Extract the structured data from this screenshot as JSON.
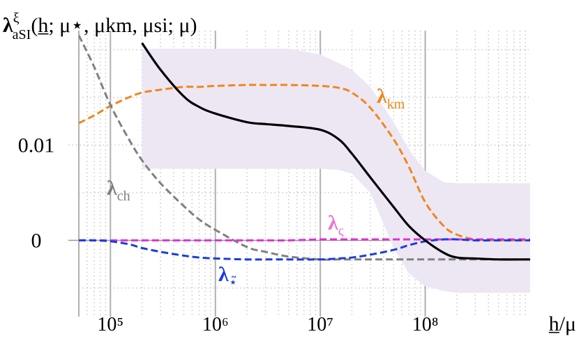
{
  "chart_data": {
    "type": "line",
    "y_label": {
      "base": "λ",
      "sup": "ξ",
      "sub": "aSI",
      "args": "(h̲; μ⋆, μkm, μsi; μ)"
    },
    "x_label": "h̲/μ",
    "log_x": true,
    "grid": true,
    "xlim": [
      50000,
      1000000000
    ],
    "ylim": [
      -0.008,
      0.022
    ],
    "xticks": [
      {
        "value": 100000,
        "label": "10⁵"
      },
      {
        "value": 1000000,
        "label": "10⁶"
      },
      {
        "value": 10000000,
        "label": "10⁷"
      },
      {
        "value": 100000000,
        "label": "10⁸"
      }
    ],
    "yticks": [
      0,
      0.01
    ],
    "y_minor_ticks": [
      -0.005,
      0.005,
      0.015,
      0.02
    ],
    "x": [
      50000,
      70000,
      100000,
      150000,
      200000,
      300000,
      500000,
      700000,
      1000000,
      2000000,
      3000000,
      5000000,
      10000000,
      15000000,
      20000000,
      30000000,
      50000000,
      70000000,
      100000000,
      150000000,
      200000000,
      300000000,
      500000000,
      1000000000
    ],
    "band": {
      "color": "#ede7f3",
      "upper": [
        null,
        null,
        null,
        null,
        0.0201,
        0.0201,
        0.0201,
        0.0201,
        0.0201,
        0.0201,
        0.0201,
        0.0201,
        0.0195,
        0.0186,
        0.0179,
        0.0161,
        0.0124,
        0.0095,
        0.0073,
        0.0061,
        0.006,
        0.006,
        0.006,
        0.006
      ],
      "lower": [
        null,
        null,
        null,
        null,
        0.0075,
        0.0075,
        0.0075,
        0.0075,
        0.0075,
        0.0075,
        0.0075,
        0.0075,
        0.0075,
        0.0074,
        0.007,
        0.005,
        -0.0008,
        -0.0035,
        -0.0048,
        -0.0053,
        -0.0055,
        -0.0055,
        -0.0055,
        -0.0055
      ]
    },
    "series": [
      {
        "name": "λ",
        "sub": "km",
        "color": "#f0861a",
        "dashed": true,
        "values": [
          0.0123,
          0.0131,
          0.0141,
          0.015,
          0.0155,
          0.0158,
          0.0161,
          0.0161,
          0.0162,
          0.0163,
          0.0163,
          0.0163,
          0.0162,
          0.016,
          0.0155,
          0.0139,
          0.0106,
          0.0077,
          0.004,
          0.0015,
          0.0006,
          0.0001,
          0,
          0
        ]
      },
      {
        "name": "λ",
        "sub": "ch",
        "color": "#808080",
        "dashed": true,
        "values": [
          0.0215,
          0.0182,
          0.0142,
          0.0106,
          0.0084,
          0.006,
          0.0036,
          0.0022,
          0.0011,
          -0.0007,
          -0.0012,
          -0.0017,
          -0.002,
          -0.002,
          -0.002,
          -0.002,
          -0.002,
          -0.002,
          -0.002,
          -0.002,
          -0.002,
          -0.002,
          -0.002,
          -0.002
        ]
      },
      {
        "name": "λ",
        "sub": "ς",
        "color": "#e030d8",
        "label_color": "#ec74d4",
        "dashed": true,
        "values": [
          0,
          0,
          0,
          0,
          0,
          0,
          0,
          0,
          0,
          0,
          0,
          0,
          0.0001,
          0.0001,
          0.0001,
          0.0001,
          0.0001,
          0.0001,
          0.0001,
          0.0001,
          0.0001,
          0.0001,
          0.0001,
          0.0001
        ]
      },
      {
        "name": "λ",
        "sub": "⋆̃",
        "color": "#1a3ce0",
        "dashed": true,
        "values": [
          0,
          0,
          -0.0001,
          -0.0004,
          -0.0008,
          -0.0012,
          -0.0016,
          -0.0018,
          -0.0019,
          -0.002,
          -0.002,
          -0.002,
          -0.002,
          -0.0019,
          -0.0018,
          -0.0015,
          -0.001,
          -0.0005,
          -0.0001,
          0.0001,
          0.0001,
          0,
          0,
          0
        ]
      },
      {
        "name": "λ",
        "sub": "aSI",
        "color": "#000000",
        "dashed": false,
        "values": [
          null,
          null,
          null,
          null,
          0.0207,
          0.0179,
          0.0151,
          0.014,
          0.0133,
          0.0124,
          0.0122,
          0.012,
          0.0116,
          0.0106,
          0.0091,
          0.0066,
          0.0035,
          0.0015,
          0,
          -0.0013,
          -0.0018,
          -0.0019,
          -0.002,
          -0.002
        ]
      }
    ]
  }
}
